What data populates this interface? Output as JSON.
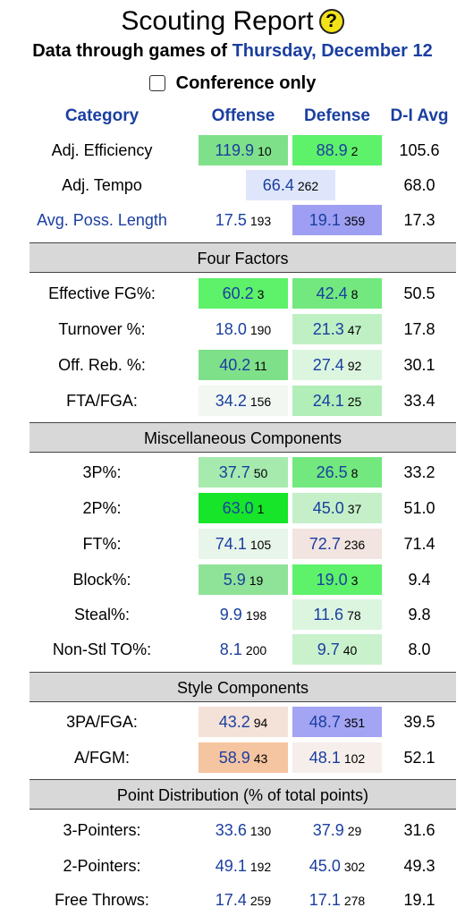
{
  "title": "Scouting Report",
  "help_icon": "?",
  "subtitle_prefix": "Data through games of",
  "subtitle_date": "Thursday, December 12",
  "conference_only_label": "Conference only",
  "headers": {
    "category": "Category",
    "offense": "Offense",
    "defense": "Defense",
    "avg": "D-I Avg"
  },
  "top_rows": {
    "adj_eff": {
      "label": "Adj. Efficiency",
      "off_val": "119.9",
      "off_rank": "10",
      "def_val": "88.9",
      "def_rank": "2",
      "avg": "105.6"
    },
    "adj_tempo": {
      "label": "Adj. Tempo",
      "val": "66.4",
      "rank": "262",
      "avg": "68.0"
    },
    "poss_len": {
      "label": "Avg. Poss. Length",
      "off_val": "17.5",
      "off_rank": "193",
      "def_val": "19.1",
      "def_rank": "359",
      "avg": "17.3"
    }
  },
  "sections": {
    "four_factors": "Four Factors",
    "misc": "Miscellaneous Components",
    "style": "Style Components",
    "points": "Point Distribution (% of total points)"
  },
  "four_factors": [
    {
      "label": "Effective FG%:",
      "off_val": "60.2",
      "off_rank": "3",
      "def_val": "42.4",
      "def_rank": "8",
      "avg": "50.5"
    },
    {
      "label": "Turnover %:",
      "off_val": "18.0",
      "off_rank": "190",
      "def_val": "21.3",
      "def_rank": "47",
      "avg": "17.8"
    },
    {
      "label": "Off. Reb. %:",
      "off_val": "40.2",
      "off_rank": "11",
      "def_val": "27.4",
      "def_rank": "92",
      "avg": "30.1"
    },
    {
      "label": "FTA/FGA:",
      "off_val": "34.2",
      "off_rank": "156",
      "def_val": "24.1",
      "def_rank": "25",
      "avg": "33.4"
    }
  ],
  "misc": [
    {
      "label": "3P%:",
      "off_val": "37.7",
      "off_rank": "50",
      "def_val": "26.5",
      "def_rank": "8",
      "avg": "33.2"
    },
    {
      "label": "2P%:",
      "off_val": "63.0",
      "off_rank": "1",
      "def_val": "45.0",
      "def_rank": "37",
      "avg": "51.0"
    },
    {
      "label": "FT%:",
      "off_val": "74.1",
      "off_rank": "105",
      "def_val": "72.7",
      "def_rank": "236",
      "avg": "71.4"
    },
    {
      "label": "Block%:",
      "off_val": "5.9",
      "off_rank": "19",
      "def_val": "19.0",
      "def_rank": "3",
      "avg": "9.4"
    },
    {
      "label": "Steal%:",
      "off_val": "9.9",
      "off_rank": "198",
      "def_val": "11.6",
      "def_rank": "78",
      "avg": "9.8"
    },
    {
      "label": "Non-Stl TO%:",
      "off_val": "8.1",
      "off_rank": "200",
      "def_val": "9.7",
      "def_rank": "40",
      "avg": "8.0"
    }
  ],
  "style": [
    {
      "label": "3PA/FGA:",
      "off_val": "43.2",
      "off_rank": "94",
      "def_val": "48.7",
      "def_rank": "351",
      "avg": "39.5"
    },
    {
      "label": "A/FGM:",
      "off_val": "58.9",
      "off_rank": "43",
      "def_val": "48.1",
      "def_rank": "102",
      "avg": "52.1"
    }
  ],
  "points": [
    {
      "label": "3-Pointers:",
      "off_val": "33.6",
      "off_rank": "130",
      "def_val": "37.9",
      "def_rank": "29",
      "avg": "31.6"
    },
    {
      "label": "2-Pointers:",
      "off_val": "49.1",
      "off_rank": "192",
      "def_val": "45.0",
      "def_rank": "302",
      "avg": "49.3"
    },
    {
      "label": "Free Throws:",
      "off_val": "17.4",
      "off_rank": "259",
      "def_val": "17.1",
      "def_rank": "278",
      "avg": "19.1"
    }
  ],
  "colors": {
    "link_blue": "#1a3fa0",
    "section_bg": "#d8d8d8",
    "help_yellow": "#f2e318"
  }
}
